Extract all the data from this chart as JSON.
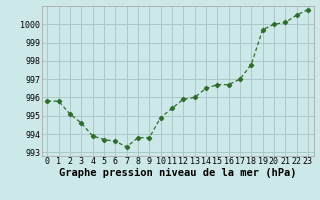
{
  "x": [
    0,
    1,
    2,
    3,
    4,
    5,
    6,
    7,
    8,
    9,
    10,
    11,
    12,
    13,
    14,
    15,
    16,
    17,
    18,
    19,
    20,
    21,
    22,
    23
  ],
  "y": [
    995.8,
    995.8,
    995.1,
    994.6,
    993.9,
    993.7,
    993.6,
    993.3,
    993.8,
    993.8,
    994.9,
    995.4,
    995.9,
    996.0,
    996.5,
    996.7,
    996.7,
    997.0,
    997.8,
    999.7,
    1000.0,
    1000.1,
    1000.5,
    1000.8
  ],
  "ylim": [
    992.8,
    1001.0
  ],
  "xlim": [
    -0.5,
    23.5
  ],
  "yticks": [
    993,
    994,
    995,
    996,
    997,
    998,
    999,
    1000
  ],
  "xticks": [
    0,
    1,
    2,
    3,
    4,
    5,
    6,
    7,
    8,
    9,
    10,
    11,
    12,
    13,
    14,
    15,
    16,
    17,
    18,
    19,
    20,
    21,
    22,
    23
  ],
  "xlabel": "Graphe pression niveau de la mer (hPa)",
  "line_color": "#2d6e2d",
  "marker": "D",
  "marker_size": 2.2,
  "bg_color": "#cde8e8",
  "grid_color": "#adc8c8",
  "tick_fontsize": 6,
  "xlabel_fontsize": 7.5
}
